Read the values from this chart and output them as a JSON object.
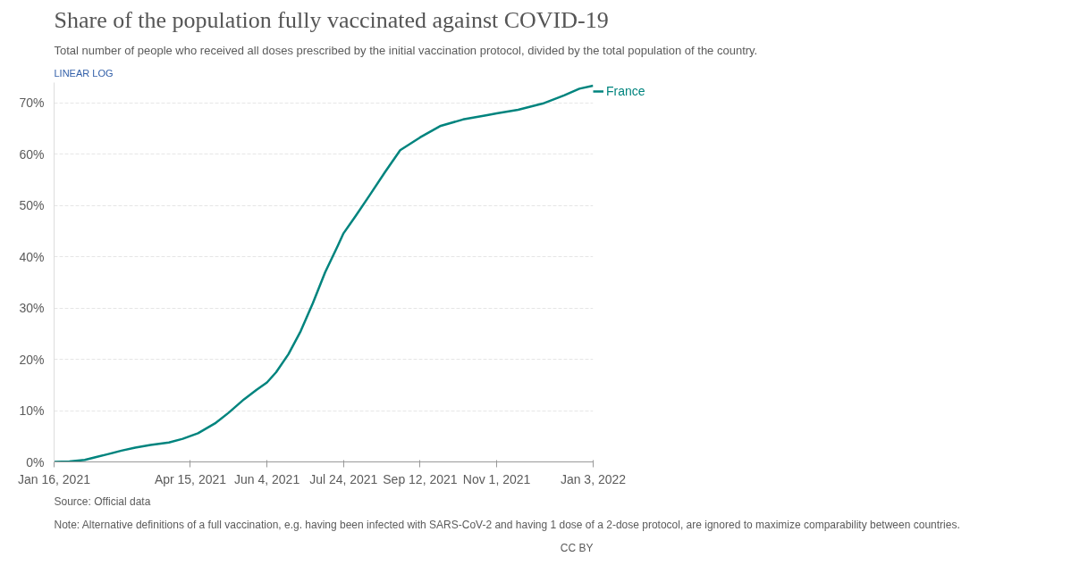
{
  "chart_data": {
    "type": "line",
    "title": "Share of the population fully vaccinated against COVID-19",
    "subtitle": "Total number of people who received all doses prescribed by the initial vaccination protocol, divided by the total population of the country.",
    "x": [
      "2021-01-16",
      "2021-01-26",
      "2021-02-05",
      "2021-02-12",
      "2021-02-20",
      "2021-03-01",
      "2021-03-10",
      "2021-03-20",
      "2021-04-01",
      "2021-04-10",
      "2021-04-20",
      "2021-05-01",
      "2021-05-10",
      "2021-05-20",
      "2021-05-28",
      "2021-06-04",
      "2021-06-10",
      "2021-06-18",
      "2021-06-26",
      "2021-07-04",
      "2021-07-12",
      "2021-07-20",
      "2021-07-24",
      "2021-08-01",
      "2021-08-10",
      "2021-08-20",
      "2021-08-30",
      "2021-09-12",
      "2021-09-25",
      "2021-10-10",
      "2021-10-25",
      "2021-11-01",
      "2021-11-15",
      "2021-12-01",
      "2021-12-15",
      "2021-12-25",
      "2022-01-03"
    ],
    "series": [
      {
        "name": "France",
        "color": "#00847e",
        "values": [
          0,
          0.1,
          0.4,
          0.9,
          1.5,
          2.2,
          2.8,
          3.3,
          3.8,
          4.5,
          5.6,
          7.5,
          9.6,
          12.2,
          14.0,
          15.5,
          17.5,
          21,
          25.5,
          31,
          37,
          42,
          44.6,
          48,
          52,
          56.5,
          60.8,
          63.3,
          65.5,
          66.8,
          67.6,
          68,
          68.7,
          69.9,
          71.5,
          72.8,
          73.4
        ]
      }
    ],
    "xlim": [
      "2021-01-16",
      "2022-01-03"
    ],
    "xticks": [
      {
        "value": "2021-01-16",
        "label": "Jan 16, 2021"
      },
      {
        "value": "2021-04-15",
        "label": "Apr 15, 2021"
      },
      {
        "value": "2021-06-04",
        "label": "Jun 4, 2021"
      },
      {
        "value": "2021-07-24",
        "label": "Jul 24, 2021"
      },
      {
        "value": "2021-09-12",
        "label": "Sep 12, 2021"
      },
      {
        "value": "2021-11-01",
        "label": "Nov 1, 2021"
      },
      {
        "value": "2022-01-03",
        "label": "Jan 3, 2022"
      }
    ],
    "ylim": [
      0,
      74
    ],
    "yticks": [
      {
        "value": 0,
        "label": "0%"
      },
      {
        "value": 10,
        "label": "10%"
      },
      {
        "value": 20,
        "label": "20%"
      },
      {
        "value": 30,
        "label": "30%"
      },
      {
        "value": 40,
        "label": "40%"
      },
      {
        "value": 50,
        "label": "50%"
      },
      {
        "value": 60,
        "label": "60%"
      },
      {
        "value": 70,
        "label": "70%"
      }
    ],
    "grid": "y",
    "legend": "top right",
    "marker": "none",
    "line_style": "solid",
    "annotations": [
      "LINEAR",
      "LOG",
      "Source: Official data",
      "Note: Alternative definitions of a full vaccination, e.g. having been infected with SARS-CoV-2 and having 1 dose of a 2-dose protocol, are ignored to maximize comparability between countries.",
      "CC BY"
    ]
  }
}
